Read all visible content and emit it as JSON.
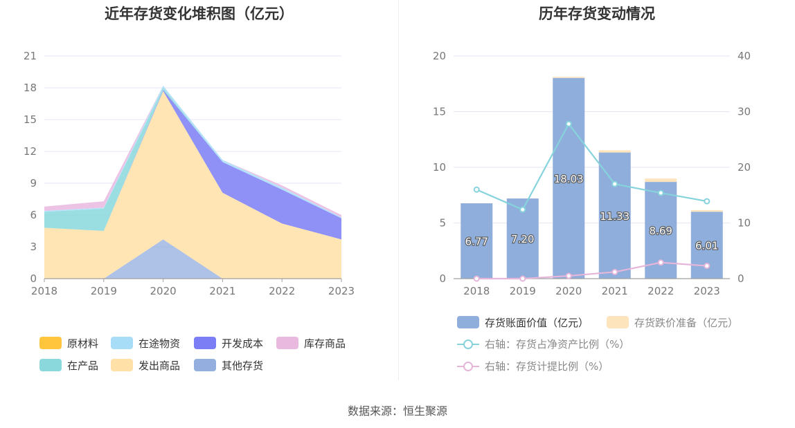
{
  "source_text": "数据来源：恒生聚源",
  "chart_data": [
    {
      "type": "area",
      "title": "近年存货变化堆积图（亿元）",
      "x": [
        "2018",
        "2019",
        "2020",
        "2021",
        "2022",
        "2023"
      ],
      "ylim": [
        0,
        21
      ],
      "yticks": [
        0,
        3,
        6,
        9,
        12,
        15,
        18,
        21
      ],
      "stacked": true,
      "grid": true,
      "legend_position": "bottom",
      "series": [
        {
          "name": "原材料",
          "color": "#FFC53D",
          "values": [
            0,
            0,
            0,
            0,
            0,
            0
          ]
        },
        {
          "name": "在产品",
          "color": "#8AD8DC",
          "values": [
            1.5,
            2.1,
            0.2,
            0,
            0,
            0
          ]
        },
        {
          "name": "在途物资",
          "color": "#A8DDF8",
          "values": [
            0.1,
            0.1,
            0.2,
            0.2,
            0.2,
            0.1
          ]
        },
        {
          "name": "发出商品",
          "color": "#FFE0A6",
          "values": [
            4.8,
            4.5,
            14.0,
            8.1,
            5.2,
            3.7
          ]
        },
        {
          "name": "开发成本",
          "color": "#7B7EF5",
          "values": [
            0,
            0,
            0.1,
            2.9,
            3.2,
            2.0
          ]
        },
        {
          "name": "其他存货",
          "color": "#93AEDF",
          "values": [
            0,
            0,
            3.7,
            0,
            0,
            0
          ]
        },
        {
          "name": "库存商品",
          "color": "#EAB9E0",
          "values": [
            0.4,
            0.6,
            0,
            0,
            0.2,
            0.2
          ]
        }
      ]
    },
    {
      "type": "bar",
      "title": "历年存货变动情况",
      "categories": [
        "2018",
        "2019",
        "2020",
        "2021",
        "2022",
        "2023"
      ],
      "ylim": [
        0,
        20
      ],
      "yticks": [
        0,
        5,
        10,
        15,
        20
      ],
      "y2lim": [
        0,
        40
      ],
      "y2ticks": [
        0,
        10,
        20,
        30,
        40
      ],
      "grid": true,
      "legend_position": "bottom",
      "series": [
        {
          "name": "存货账面价值（亿元）",
          "type": "bar",
          "stacked": true,
          "color": "#8FAEDB",
          "values": [
            6.77,
            7.2,
            18.03,
            11.33,
            8.69,
            6.01
          ],
          "labels": [
            "6.77",
            "7.20",
            "18.03",
            "11.33",
            "8.69",
            "6.01"
          ]
        },
        {
          "name": "存货跌价准备（亿元）",
          "type": "bar",
          "stacked": true,
          "color": "#FDE4BD",
          "values": [
            0,
            0,
            0.1,
            0.2,
            0.3,
            0.15
          ]
        },
        {
          "name": "右轴：存货占净资产比例（%）",
          "type": "line",
          "axis": "right",
          "color": "#86D3DC",
          "values": [
            16.0,
            12.4,
            27.8,
            17.0,
            15.4,
            13.9
          ]
        },
        {
          "name": "右轴：存货计提比例（%）",
          "type": "line",
          "axis": "right",
          "color": "#E6B6DA",
          "values": [
            0,
            0,
            0.5,
            1.2,
            2.9,
            2.3
          ]
        }
      ]
    }
  ]
}
